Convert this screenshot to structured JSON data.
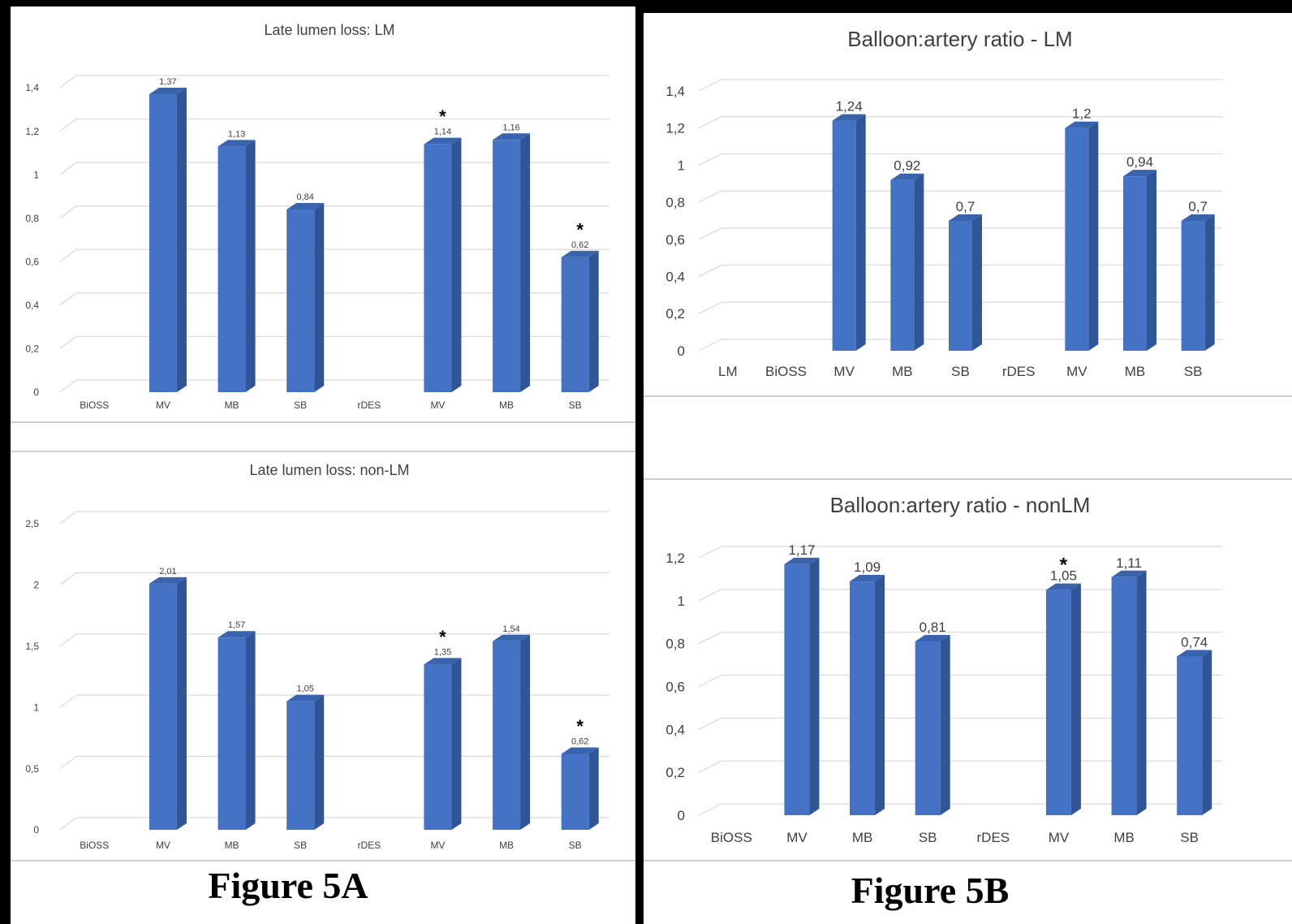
{
  "figure_labels": {
    "a": "Figure 5A",
    "b": "Figure 5B"
  },
  "colors": {
    "bar_front": "#4472C4",
    "bar_side": "#2F5597",
    "bar_top": "#3A63AD",
    "grid": "#D9D9D9",
    "text": "#404040",
    "frame": "#000000"
  },
  "chart_data": [
    {
      "type": "bar",
      "title": "Late lumen loss: LM",
      "categories": [
        "BiOSS",
        "MV",
        "MB",
        "SB",
        "rDES",
        "MV",
        "MB",
        "SB"
      ],
      "values": [
        null,
        1.37,
        1.13,
        0.84,
        null,
        1.14,
        1.16,
        0.62
      ],
      "data_labels": [
        "",
        "1,37",
        "1,13",
        "0,84",
        "",
        "1,14",
        "1,16",
        "0,62"
      ],
      "significance_markers": [
        "",
        "",
        "",
        "",
        "",
        "*",
        "",
        "*"
      ],
      "yticks": [
        "0",
        "0,2",
        "0,4",
        "0,6",
        "0,8",
        "1",
        "1,2",
        "1,4"
      ],
      "ylim": [
        0,
        1.4
      ],
      "grid": true,
      "xlabel": "",
      "ylabel": ""
    },
    {
      "type": "bar",
      "title": "Late lumen loss: non-LM",
      "categories": [
        "BiOSS",
        "MV",
        "MB",
        "SB",
        "rDES",
        "MV",
        "MB",
        "SB"
      ],
      "values": [
        null,
        2.01,
        1.57,
        1.05,
        null,
        1.35,
        1.54,
        0.62
      ],
      "data_labels": [
        "",
        "2,01",
        "1,57",
        "1,05",
        "",
        "1,35",
        "1,54",
        "0,62"
      ],
      "significance_markers": [
        "",
        "",
        "",
        "",
        "",
        "*",
        "",
        "*"
      ],
      "yticks": [
        "0",
        "0,5",
        "1",
        "1,5",
        "2",
        "2,5"
      ],
      "ylim": [
        0,
        2.5
      ],
      "grid": true,
      "xlabel": "",
      "ylabel": ""
    },
    {
      "type": "bar",
      "title": "Balloon:artery ratio - LM",
      "categories": [
        "LM",
        "BiOSS",
        "MV",
        "MB",
        "SB",
        "rDES",
        "MV",
        "MB",
        "SB"
      ],
      "values": [
        null,
        null,
        1.24,
        0.92,
        0.7,
        null,
        1.2,
        0.94,
        0.7
      ],
      "data_labels": [
        "",
        "",
        "1,24",
        "0,92",
        "0,7",
        "",
        "1,2",
        "0,94",
        "0,7"
      ],
      "significance_markers": [
        "",
        "",
        "",
        "",
        "",
        "",
        "",
        "",
        ""
      ],
      "yticks": [
        "0",
        "0,2",
        "0,4",
        "0,6",
        "0,8",
        "1",
        "1,2",
        "1,4"
      ],
      "ylim": [
        0,
        1.4
      ],
      "grid": true,
      "xlabel": "",
      "ylabel": ""
    },
    {
      "type": "bar",
      "title": "Balloon:artery ratio - nonLM",
      "categories": [
        "BiOSS",
        "MV",
        "MB",
        "SB",
        "rDES",
        "MV",
        "MB",
        "SB"
      ],
      "values": [
        null,
        1.17,
        1.09,
        0.81,
        null,
        1.05,
        1.11,
        0.74
      ],
      "data_labels": [
        "",
        "1,17",
        "1,09",
        "0,81",
        "",
        "1,05",
        "1,11",
        "0,74"
      ],
      "significance_markers": [
        "",
        "",
        "",
        "",
        "*",
        "",
        "",
        ""
      ],
      "yticks": [
        "0",
        "0,2",
        "0,4",
        "0,6",
        "0,8",
        "1",
        "1,2"
      ],
      "ylim": [
        0,
        1.2
      ],
      "grid": true,
      "xlabel": "",
      "ylabel": ""
    }
  ]
}
